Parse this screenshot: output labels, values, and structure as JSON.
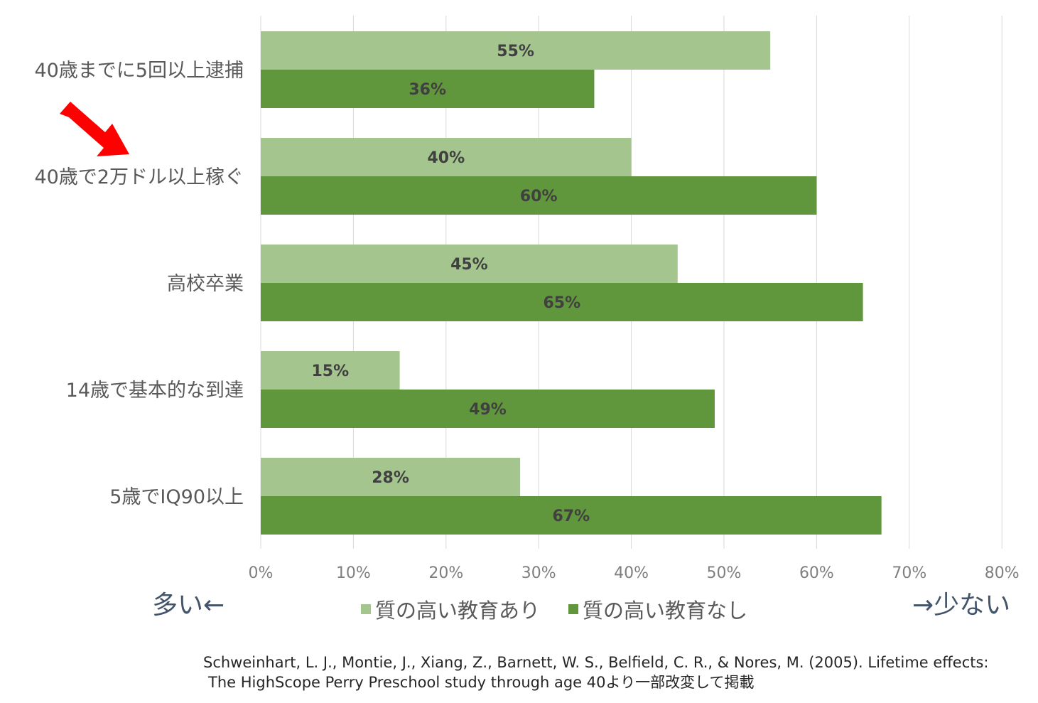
{
  "chart_data": {
    "type": "bar",
    "orientation": "horizontal",
    "categories": [
      "40歳までに5回以上逮捕",
      "40歳で2万ドル以上稼ぐ",
      "高校卒業",
      "14歳で基本的な到達",
      "5歳でIQ90以上"
    ],
    "series": [
      {
        "name": "質の高い教育あり",
        "values": [
          55,
          40,
          45,
          15,
          28
        ],
        "color": "#a5c58f"
      },
      {
        "name": "質の高い教育なし",
        "values": [
          36,
          60,
          65,
          49,
          67
        ],
        "color": "#61973c"
      }
    ],
    "xlim": [
      0,
      80
    ],
    "xticks": [
      "0%",
      "10%",
      "20%",
      "30%",
      "40%",
      "50%",
      "60%",
      "70%",
      "80%"
    ],
    "grid": true,
    "legend_position": "bottom"
  },
  "annotations": {
    "left_note": "多い←",
    "right_note": "→少ない",
    "highlight_arrow_color": "#ff0000",
    "highlight_arrow_icon": "red-arrow-icon"
  },
  "citation": {
    "line1": "Schweinhart, L. J., Montie, J., Xiang, Z., Barnett, W. S., Belfield, C. R., & Nores, M. (2005). Lifetime effects:",
    "line2": "The HighScope Perry Preschool study through age 40より一部改変して掲載"
  }
}
